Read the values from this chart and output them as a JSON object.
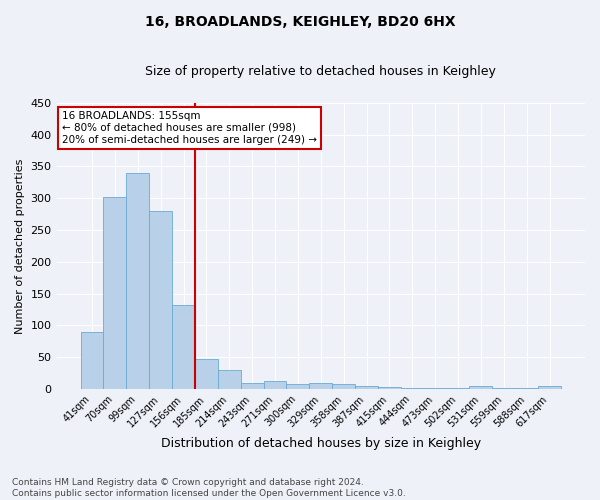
{
  "title": "16, BROADLANDS, KEIGHLEY, BD20 6HX",
  "subtitle": "Size of property relative to detached houses in Keighley",
  "xlabel": "Distribution of detached houses by size in Keighley",
  "ylabel": "Number of detached properties",
  "footnote": "Contains HM Land Registry data © Crown copyright and database right 2024.\nContains public sector information licensed under the Open Government Licence v3.0.",
  "categories": [
    "41sqm",
    "70sqm",
    "99sqm",
    "127sqm",
    "156sqm",
    "185sqm",
    "214sqm",
    "243sqm",
    "271sqm",
    "300sqm",
    "329sqm",
    "358sqm",
    "387sqm",
    "415sqm",
    "444sqm",
    "473sqm",
    "502sqm",
    "531sqm",
    "559sqm",
    "588sqm",
    "617sqm"
  ],
  "values": [
    90,
    302,
    340,
    280,
    132,
    47,
    30,
    10,
    12,
    7,
    10,
    7,
    5,
    3,
    2,
    2,
    1,
    5,
    1,
    2,
    4
  ],
  "bar_color": "#b8d0e8",
  "bar_edge_color": "#6aaad4",
  "background_color": "#eef2f8",
  "grid_color": "#ffffff",
  "marker_line_color": "#cc0000",
  "marker_index": 4,
  "annotation_line1": "16 BROADLANDS: 155sqm",
  "annotation_line2": "← 80% of detached houses are smaller (998)",
  "annotation_line3": "20% of semi-detached houses are larger (249) →",
  "annotation_box_color": "#cc0000",
  "ylim": [
    0,
    450
  ],
  "yticks": [
    0,
    50,
    100,
    150,
    200,
    250,
    300,
    350,
    400,
    450
  ],
  "title_fontsize": 10,
  "subtitle_fontsize": 9,
  "ylabel_fontsize": 8,
  "xlabel_fontsize": 9,
  "tick_fontsize": 8,
  "annot_fontsize": 7.5,
  "footnote_fontsize": 6.5
}
